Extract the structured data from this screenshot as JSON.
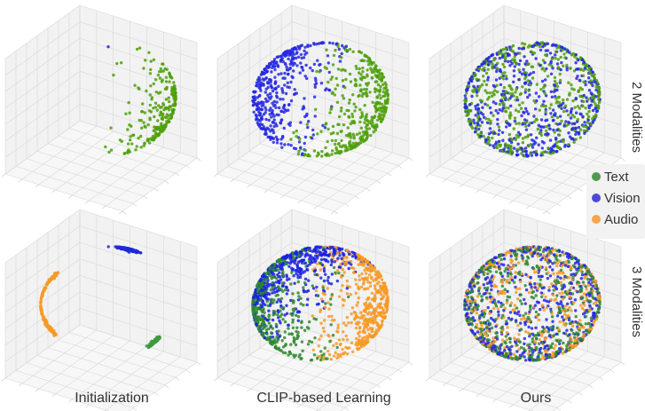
{
  "figure": {
    "column_labels": [
      "Initialization",
      "CLIP-based Learning",
      "Ours"
    ],
    "row_labels": [
      "2 Modalities",
      "3 Modalities"
    ]
  },
  "legend": {
    "items": [
      {
        "label": "Text",
        "color": "#4d9a4d"
      },
      {
        "label": "Vision",
        "color": "#4a4ad8"
      },
      {
        "label": "Audio",
        "color": "#f5a44a"
      }
    ]
  },
  "chart_data": [
    {
      "type": "scatter",
      "panel": "2 Modalities - Initialization",
      "series": [
        {
          "name": "Vision",
          "color": "#1f2ad8",
          "distribution": "single point",
          "count": 1,
          "center": [
            0,
            0,
            0.8
          ]
        },
        {
          "name": "Text",
          "color": "#4ea00a",
          "distribution": "cap",
          "count": 260,
          "center": [
            0.35,
            0.85,
            -0.3
          ],
          "spread": 0.55
        }
      ]
    },
    {
      "type": "scatter",
      "panel": "2 Modalities - CLIP-based Learning",
      "series": [
        {
          "name": "Vision",
          "color": "#2428e0",
          "distribution": "cap",
          "count": 420,
          "center": [
            -0.2,
            -0.9,
            0.35
          ],
          "spread": 1.25
        },
        {
          "name": "Text",
          "color": "#4ea00a",
          "distribution": "cap",
          "count": 420,
          "center": [
            0.2,
            0.9,
            -0.35
          ],
          "spread": 1.25
        }
      ]
    },
    {
      "type": "scatter",
      "panel": "2 Modalities - Ours",
      "series": [
        {
          "name": "Text",
          "color": "#4ea00a",
          "distribution": "uniform sphere",
          "count": 520
        },
        {
          "name": "Vision",
          "color": "#2428e0",
          "distribution": "uniform sphere",
          "count": 520
        }
      ]
    },
    {
      "type": "scatter",
      "panel": "3 Modalities - Initialization",
      "series": [
        {
          "name": "Vision",
          "color": "#1f2ad8",
          "distribution": "cluster",
          "count": 220,
          "center": [
            -0.1,
            0.2,
            0.55
          ],
          "spread": 0.08
        },
        {
          "name": "Text",
          "color": "#3d9a3d",
          "distribution": "cluster",
          "count": 160,
          "center": [
            0.3,
            0.7,
            -0.8
          ],
          "spread": 0.06
        },
        {
          "name": "Audio",
          "color": "#f79a26",
          "distribution": "arc",
          "count": 200,
          "center": [
            -0.3,
            -0.95,
            0.0
          ],
          "spread": 0.9
        }
      ]
    },
    {
      "type": "scatter",
      "panel": "3 Modalities - CLIP-based Learning",
      "series": [
        {
          "name": "Vision",
          "color": "#1a22e0",
          "distribution": "cap",
          "count": 520,
          "center": [
            -0.4,
            -0.5,
            0.75
          ],
          "spread": 1.15
        },
        {
          "name": "Text",
          "color": "#2f8a2f",
          "distribution": "cap",
          "count": 380,
          "center": [
            -0.5,
            -0.8,
            -0.2
          ],
          "spread": 0.9
        },
        {
          "name": "Audio",
          "color": "#f79a26",
          "distribution": "cap",
          "count": 520,
          "center": [
            0.3,
            0.95,
            0.0
          ],
          "spread": 1.15
        }
      ]
    },
    {
      "type": "scatter",
      "panel": "3 Modalities - Ours",
      "series": [
        {
          "name": "Vision",
          "color": "#2428e0",
          "distribution": "uniform sphere",
          "count": 520
        },
        {
          "name": "Text",
          "color": "#2f8a2f",
          "distribution": "uniform sphere",
          "count": 520
        },
        {
          "name": "Audio",
          "color": "#f79a26",
          "distribution": "uniform sphere",
          "count": 420
        }
      ]
    }
  ]
}
